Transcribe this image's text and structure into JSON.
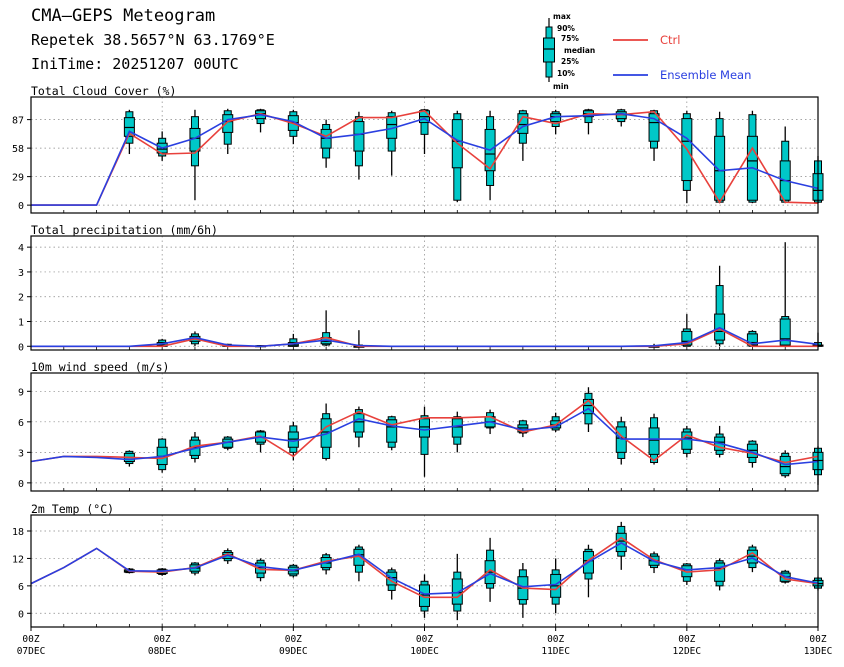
{
  "header": {
    "title": "CMA–GEPS Meteogram",
    "location": "Repetek 38.5657°N 63.1769°E",
    "init_time": "IniTime: 20251207 00UTC"
  },
  "legend": {
    "box_labels": [
      "max",
      "90%",
      "75%",
      "median",
      "25%",
      "10%",
      "min"
    ],
    "ctrl_label": "Ctrl",
    "mean_label": "Ensemble Mean"
  },
  "colors": {
    "box_fill": "#00c8c8",
    "ctrl": "#e8413c",
    "mean": "#2a3fe0",
    "grid": "#888888"
  },
  "chart_data": {
    "type": "meteogram",
    "x": [
      0,
      6,
      12,
      18,
      24,
      30,
      36,
      42,
      48,
      54,
      60,
      66,
      72,
      78,
      84,
      90,
      96,
      102,
      108,
      114,
      120,
      126,
      132,
      138,
      144
    ],
    "x_unit": "hours since 2025-12-07 00UTC",
    "x_tick_labels": [
      {
        "hour": 0,
        "top": "00Z",
        "bottom": "07DEC"
      },
      {
        "hour": 24,
        "top": "00Z",
        "bottom": "08DEC"
      },
      {
        "hour": 48,
        "top": "00Z",
        "bottom": "09DEC"
      },
      {
        "hour": 72,
        "top": "00Z",
        "bottom": "10DEC"
      },
      {
        "hour": 96,
        "top": "00Z",
        "bottom": "11DEC"
      },
      {
        "hour": 120,
        "top": "00Z",
        "bottom": "12DEC"
      },
      {
        "hour": 144,
        "top": "00Z",
        "bottom": "13DEC"
      }
    ],
    "panels": [
      {
        "key": "cloud",
        "title": "Total Cloud Cover (%)",
        "ylim": [
          -8,
          110
        ],
        "yticks": [
          0,
          29,
          58,
          87
        ],
        "ctrl": [
          0,
          0,
          0,
          73,
          52,
          53,
          85,
          93,
          83,
          70,
          89,
          89,
          96,
          63,
          37,
          90,
          83,
          93,
          92,
          95,
          57,
          3,
          58,
          3,
          2
        ],
        "mean": [
          0,
          0,
          0,
          75,
          58,
          68,
          87,
          92,
          85,
          68,
          72,
          78,
          88,
          66,
          56,
          80,
          90,
          91,
          93,
          88,
          68,
          35,
          38,
          25,
          17
        ],
        "boxes": [
          null,
          null,
          null,
          [
            52,
            63,
            70,
            79,
            89,
            95,
            97
          ],
          [
            45,
            50,
            53,
            57,
            63,
            68,
            75
          ],
          [
            5,
            40,
            55,
            68,
            78,
            90,
            97
          ],
          [
            52,
            62,
            74,
            85,
            92,
            96,
            98
          ],
          [
            74,
            83,
            88,
            93,
            96,
            97,
            98
          ],
          [
            62,
            70,
            76,
            84,
            91,
            95,
            97
          ],
          [
            38,
            48,
            58,
            68,
            77,
            82,
            87
          ],
          [
            26,
            40,
            55,
            72,
            85,
            90,
            95
          ],
          [
            30,
            55,
            68,
            82,
            90,
            94,
            96
          ],
          [
            52,
            72,
            84,
            90,
            96,
            97,
            98
          ],
          [
            3,
            5,
            38,
            65,
            87,
            93,
            96
          ],
          [
            5,
            20,
            35,
            52,
            77,
            90,
            96
          ],
          [
            45,
            63,
            73,
            82,
            93,
            96,
            97
          ],
          [
            72,
            80,
            85,
            90,
            93,
            95,
            97
          ],
          [
            72,
            84,
            90,
            93,
            96,
            97,
            98
          ],
          [
            80,
            85,
            88,
            92,
            95,
            97,
            98
          ],
          [
            45,
            58,
            65,
            84,
            93,
            96,
            97
          ],
          [
            2,
            15,
            25,
            65,
            88,
            93,
            96
          ],
          [
            2,
            3,
            5,
            35,
            70,
            88,
            95
          ],
          [
            2,
            3,
            5,
            45,
            70,
            92,
            96
          ],
          [
            2,
            3,
            5,
            25,
            45,
            65,
            80
          ],
          [
            2,
            3,
            5,
            15,
            32,
            45,
            50
          ]
        ]
      },
      {
        "key": "precip",
        "title": "Total precipitation (mm/6h)",
        "ylim": [
          -0.15,
          4.45
        ],
        "yticks": [
          0,
          1,
          2,
          3,
          4
        ],
        "ctrl": [
          0,
          0,
          0,
          0,
          0,
          0.3,
          0,
          0,
          0.1,
          0.35,
          0,
          0,
          0,
          0,
          0,
          0,
          0,
          0,
          0,
          0,
          0.1,
          0.7,
          0,
          0,
          0
        ],
        "mean": [
          0,
          0,
          0,
          0,
          0.1,
          0.35,
          0.05,
          0,
          0.1,
          0.25,
          0.03,
          0,
          0,
          0,
          0,
          0,
          0,
          0,
          0,
          0.02,
          0.15,
          0.75,
          0.1,
          0.25,
          0.08
        ],
        "boxes": [
          null,
          null,
          null,
          null,
          [
            0,
            0,
            0,
            0.05,
            0.15,
            0.25,
            0.3
          ],
          [
            0,
            0.1,
            0.2,
            0.3,
            0.4,
            0.5,
            0.6
          ],
          [
            0,
            0,
            0,
            0.02,
            0.05,
            0.08,
            0.1
          ],
          [
            0,
            0,
            0,
            0,
            0.02,
            0.03,
            0.05
          ],
          [
            0,
            0,
            0,
            0.05,
            0.15,
            0.3,
            0.5
          ],
          [
            0,
            0.05,
            0.1,
            0.2,
            0.35,
            0.55,
            1.45
          ],
          [
            0,
            0,
            0,
            0,
            0,
            0.05,
            0.65
          ],
          null,
          null,
          null,
          null,
          null,
          null,
          null,
          null,
          [
            0,
            0,
            0,
            0,
            0,
            0.02,
            0.1
          ],
          [
            0,
            0,
            0.05,
            0.2,
            0.6,
            0.7,
            1.3
          ],
          [
            0,
            0.1,
            0.25,
            0.6,
            1.3,
            2.45,
            3.25
          ],
          [
            0,
            0,
            0.05,
            0.15,
            0.5,
            0.6,
            0.65
          ],
          [
            0,
            0,
            0.05,
            0.3,
            1.1,
            1.2,
            4.2
          ],
          [
            0,
            0,
            0,
            0.02,
            0.05,
            0.15,
            0.55
          ]
        ]
      },
      {
        "key": "wind",
        "title": "10m wind speed (m/s)",
        "ylim": [
          -0.8,
          10.8
        ],
        "yticks": [
          0,
          3,
          6,
          9
        ],
        "ctrl": [
          2.1,
          2.6,
          2.6,
          2.5,
          2.4,
          3.6,
          4.0,
          4.6,
          2.6,
          5.5,
          7.0,
          5.7,
          6.4,
          6.4,
          6.5,
          5.0,
          5.7,
          8.1,
          4.6,
          2.2,
          4.7,
          3.5,
          2.9,
          2.0,
          2.6
        ],
        "mean": [
          2.1,
          2.6,
          2.5,
          2.3,
          2.6,
          3.4,
          4.0,
          4.5,
          4.1,
          4.8,
          6.3,
          5.6,
          5.2,
          5.6,
          6.0,
          5.2,
          5.5,
          7.3,
          4.3,
          4.3,
          4.3,
          3.9,
          3.0,
          1.8,
          2.1
        ],
        "boxes": [
          null,
          null,
          null,
          [
            1.6,
            1.9,
            2.1,
            2.5,
            2.9,
            3.1,
            3.2
          ],
          [
            1.0,
            1.3,
            1.8,
            2.6,
            3.5,
            4.3,
            4.4
          ],
          [
            2.0,
            2.4,
            2.7,
            3.5,
            4.2,
            4.5,
            5.0
          ],
          [
            3.2,
            3.4,
            3.5,
            4.0,
            4.3,
            4.5,
            4.6
          ],
          [
            3.0,
            3.8,
            4.0,
            4.5,
            5.0,
            5.1,
            5.2
          ],
          [
            2.2,
            3.0,
            3.5,
            4.3,
            5.0,
            5.6,
            6.0
          ],
          [
            2.2,
            2.4,
            3.5,
            5.0,
            6.3,
            6.8,
            7.8
          ],
          [
            3.5,
            4.5,
            5.0,
            6.0,
            6.8,
            7.2,
            7.5
          ],
          [
            3.2,
            3.5,
            4.0,
            5.5,
            6.2,
            6.5,
            6.6
          ],
          [
            0.6,
            2.8,
            4.5,
            5.5,
            6.3,
            6.6,
            7.5
          ],
          [
            3.0,
            3.8,
            4.5,
            5.5,
            6.3,
            6.5,
            7.0
          ],
          [
            4.8,
            5.4,
            5.5,
            6.0,
            6.5,
            6.9,
            7.2
          ],
          [
            4.5,
            4.9,
            5.0,
            5.4,
            5.7,
            6.1,
            6.2
          ],
          [
            5.0,
            5.2,
            5.4,
            5.7,
            6.1,
            6.5,
            6.9
          ],
          [
            5.0,
            5.8,
            6.8,
            7.6,
            8.2,
            8.8,
            9.4
          ],
          [
            1.8,
            2.4,
            3.0,
            4.4,
            5.5,
            6.0,
            6.5
          ],
          [
            1.8,
            2.0,
            2.8,
            4.2,
            5.4,
            6.4,
            6.8
          ],
          [
            2.5,
            2.9,
            3.3,
            4.4,
            5.0,
            5.3,
            5.6
          ],
          [
            2.5,
            2.8,
            3.2,
            4.0,
            4.5,
            4.8,
            5.6
          ],
          [
            1.5,
            2.0,
            2.5,
            3.2,
            3.8,
            4.1,
            4.2
          ],
          [
            0.5,
            0.7,
            0.9,
            1.6,
            2.6,
            2.9,
            3.2
          ],
          [
            -0.2,
            0.8,
            1.3,
            2.2,
            3.0,
            3.4,
            3.6
          ]
        ]
      },
      {
        "key": "temp",
        "title": "2m Temp (°C)",
        "ylim": [
          -3,
          21.5
        ],
        "yticks": [
          0,
          6,
          12,
          18
        ],
        "ctrl": [
          6.5,
          10,
          14.2,
          9.2,
          9,
          10,
          13,
          9.6,
          9.4,
          11.4,
          12.5,
          7,
          3.5,
          3.5,
          9.5,
          5.5,
          5.2,
          11.6,
          16.5,
          11.7,
          9,
          9.5,
          13.2,
          7.5,
          6.5
        ],
        "mean": [
          6.5,
          10,
          14.2,
          9.3,
          9.2,
          9.9,
          12.7,
          10.2,
          9.4,
          11.1,
          12.9,
          7.7,
          4.2,
          4.5,
          8.7,
          5.8,
          6.3,
          11.2,
          15.4,
          11.4,
          9.5,
          10.0,
          12.1,
          8.0,
          6.6
        ],
        "boxes": [
          null,
          null,
          null,
          [
            8.7,
            8.9,
            9.0,
            9.2,
            9.5,
            9.7,
            9.9
          ],
          [
            8.2,
            8.5,
            8.7,
            9.1,
            9.5,
            9.7,
            9.9
          ],
          [
            8.3,
            8.8,
            9.2,
            9.9,
            10.6,
            11.0,
            11.2
          ],
          [
            10.8,
            11.5,
            12.0,
            12.8,
            13.3,
            13.7,
            14.2
          ],
          [
            7.0,
            7.8,
            8.8,
            10.0,
            11.0,
            11.6,
            12.0
          ],
          [
            7.8,
            8.2,
            8.6,
            9.3,
            10.1,
            10.5,
            10.8
          ],
          [
            8.5,
            9.5,
            10.0,
            11.0,
            12.2,
            12.8,
            13.2
          ],
          [
            7.0,
            9.0,
            10.5,
            12.8,
            14.0,
            14.5,
            15.0
          ],
          [
            3.0,
            5.0,
            6.2,
            7.8,
            9.0,
            9.5,
            10.0
          ],
          [
            -1.0,
            0.5,
            1.5,
            4.0,
            6.2,
            7.0,
            8.5
          ],
          [
            -1.5,
            0.5,
            2.0,
            4.5,
            7.5,
            9.0,
            13.0
          ],
          [
            2.5,
            5.5,
            6.5,
            9.0,
            11.5,
            13.8,
            16.5
          ],
          [
            -1.0,
            2.0,
            3.0,
            5.5,
            8.0,
            9.5,
            11.0
          ],
          [
            0.0,
            2.0,
            3.5,
            6.0,
            8.5,
            9.5,
            12.0
          ],
          [
            3.5,
            7.5,
            8.8,
            11.5,
            13.5,
            14.0,
            15.0
          ],
          [
            9.5,
            12.5,
            13.5,
            15.8,
            17.5,
            19.0,
            20.0
          ],
          [
            8.8,
            10.0,
            10.5,
            11.5,
            12.5,
            13.0,
            13.5
          ],
          [
            6.2,
            7.0,
            8.0,
            9.5,
            10.4,
            10.8,
            11.0
          ],
          [
            5.0,
            6.0,
            7.0,
            9.8,
            11.0,
            11.5,
            12.0
          ],
          [
            9.0,
            10.0,
            11.0,
            12.5,
            13.8,
            14.5,
            15.0
          ],
          [
            6.5,
            6.8,
            7.0,
            8.0,
            8.8,
            9.2,
            9.5
          ],
          [
            5.0,
            5.5,
            6.0,
            6.5,
            7.2,
            7.7,
            8.0
          ]
        ]
      }
    ]
  }
}
